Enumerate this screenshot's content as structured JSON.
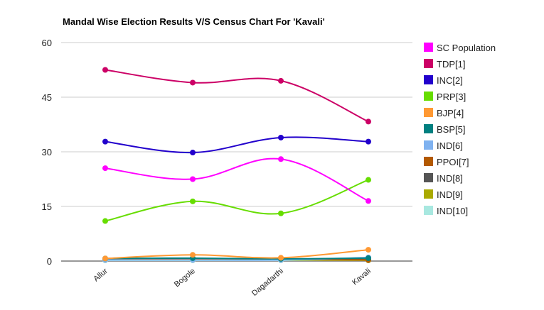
{
  "chart_data": {
    "type": "line",
    "title": "Mandal Wise Election Results V/S Census Chart For 'Kavali'",
    "xlabel": "",
    "ylabel": "",
    "categories": [
      "Allur",
      "Bogole",
      "Dagadarthi",
      "Kavali"
    ],
    "ylim": [
      0,
      60
    ],
    "yticks": [
      0,
      15,
      30,
      45,
      60
    ],
    "grid": true,
    "legend_position": "right",
    "series": [
      {
        "name": "SC Population",
        "color": "#ff00ff",
        "values": [
          25.5,
          22.5,
          28.0,
          16.5
        ]
      },
      {
        "name": "TDP[1]",
        "color": "#cc0066",
        "values": [
          52.5,
          49.0,
          49.5,
          38.3
        ]
      },
      {
        "name": "INC[2]",
        "color": "#2200cc",
        "values": [
          32.8,
          29.8,
          33.9,
          32.8
        ]
      },
      {
        "name": "PRP[3]",
        "color": "#66dd00",
        "values": [
          11.0,
          16.4,
          13.1,
          22.3
        ]
      },
      {
        "name": "BJP[4]",
        "color": "#ff9933",
        "values": [
          0.7,
          1.7,
          0.9,
          3.1
        ]
      },
      {
        "name": "BSP[5]",
        "color": "#008080",
        "values": [
          0.7,
          0.8,
          0.6,
          0.8
        ]
      },
      {
        "name": "IND[6]",
        "color": "#7fb2f0",
        "values": [
          0.3,
          0.3,
          0.3,
          1.0
        ]
      },
      {
        "name": "PPOI[7]",
        "color": "#b35900",
        "values": [
          0.4,
          0.4,
          0.4,
          0.3
        ]
      },
      {
        "name": "IND[8]",
        "color": "#555555",
        "values": [
          0.5,
          0.5,
          0.5,
          0.4
        ]
      },
      {
        "name": "IND[9]",
        "color": "#aaaa00",
        "values": [
          0.3,
          0.3,
          0.3,
          0.2
        ]
      },
      {
        "name": "IND[10]",
        "color": "#a8e8e0",
        "values": [
          0.2,
          0.2,
          0.2,
          0.2
        ]
      }
    ]
  }
}
